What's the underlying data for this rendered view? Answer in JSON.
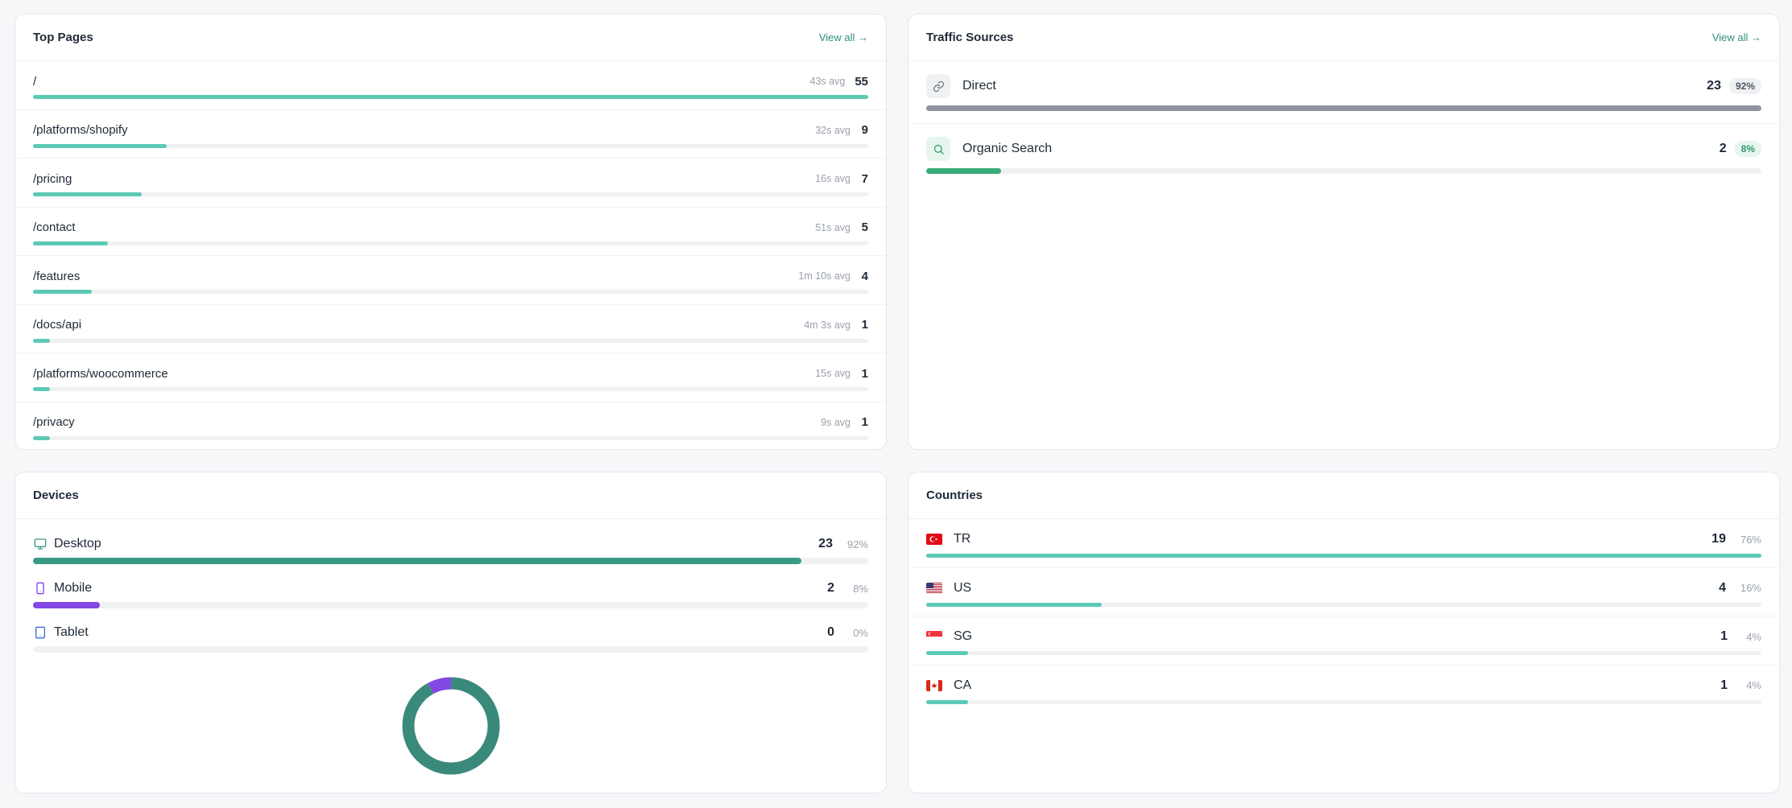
{
  "top_pages": {
    "title": "Top Pages",
    "view_all": "View all →",
    "rows": [
      {
        "path": "/",
        "avg": "43s avg",
        "count": "55",
        "share": 1.0
      },
      {
        "path": "/platforms/shopify",
        "avg": "32s avg",
        "count": "9",
        "share": 0.16
      },
      {
        "path": "/pricing",
        "avg": "16s avg",
        "count": "7",
        "share": 0.13
      },
      {
        "path": "/contact",
        "avg": "51s avg",
        "count": "5",
        "share": 0.09
      },
      {
        "path": "/features",
        "avg": "1m 10s avg",
        "count": "4",
        "share": 0.07
      },
      {
        "path": "/docs/api",
        "avg": "4m 3s avg",
        "count": "1",
        "share": 0.02
      },
      {
        "path": "/platforms/woocommerce",
        "avg": "15s avg",
        "count": "1",
        "share": 0.02
      },
      {
        "path": "/privacy",
        "avg": "9s avg",
        "count": "1",
        "share": 0.02
      }
    ]
  },
  "traffic_sources": {
    "title": "Traffic Sources",
    "view_all": "View all →",
    "rows": [
      {
        "label": "Direct",
        "icon": "link-icon",
        "count": "23",
        "pct": "92%",
        "share": 1.0,
        "color": "#8e939c",
        "badge_bg": "#f0f1f3",
        "badge_fg": "#4b5563",
        "icon_bg": "#f0f1f3",
        "icon_fg": "#6b7280"
      },
      {
        "label": "Organic Search",
        "icon": "search-icon",
        "count": "2",
        "pct": "8%",
        "share": 0.09,
        "color": "#3aaa7b",
        "badge_bg": "#e6f6ee",
        "badge_fg": "#2e9a68",
        "icon_bg": "#e6f6ee",
        "icon_fg": "#2e9a68"
      }
    ]
  },
  "devices": {
    "title": "Devices",
    "rows": [
      {
        "label": "Desktop",
        "icon": "monitor-icon",
        "count": "23",
        "pct": "92%",
        "share": 0.92,
        "color": "#3a9a86"
      },
      {
        "label": "Mobile",
        "icon": "smartphone-icon",
        "count": "2",
        "pct": "8%",
        "share": 0.08,
        "color": "#8247e5"
      },
      {
        "label": "Tablet",
        "icon": "tablet-icon",
        "count": "0",
        "pct": "0%",
        "share": 0.0,
        "color": "#3b6fd6"
      }
    ]
  },
  "countries": {
    "title": "Countries",
    "rows": [
      {
        "code": "TR",
        "flag": "tr-flag-icon",
        "count": "19",
        "pct": "76%",
        "share": 1.0
      },
      {
        "code": "US",
        "flag": "us-flag-icon",
        "count": "4",
        "pct": "16%",
        "share": 0.21
      },
      {
        "code": "SG",
        "flag": "sg-flag-icon",
        "count": "1",
        "pct": "4%",
        "share": 0.05
      },
      {
        "code": "CA",
        "flag": "ca-flag-icon",
        "count": "1",
        "pct": "4%",
        "share": 0.05
      }
    ]
  },
  "colors": {
    "accent_teal": "#5ccab5",
    "link_green": "#2f8f7f"
  }
}
